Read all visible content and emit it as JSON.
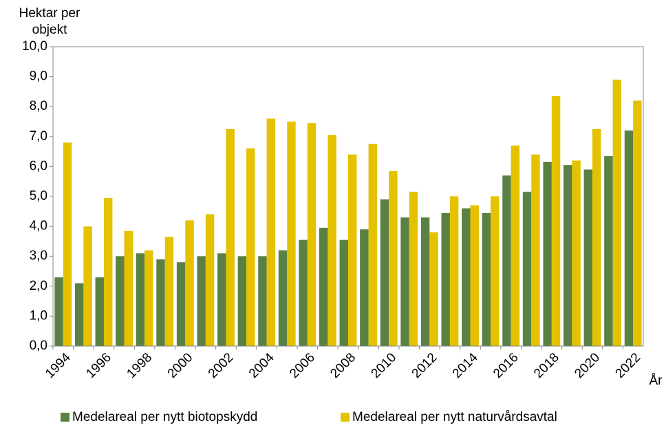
{
  "chart_data": {
    "type": "bar",
    "ylabel": "Hektar per objekt",
    "xlabel": "År",
    "categories": [
      "1994",
      null,
      "1996",
      null,
      "1998",
      null,
      "2000",
      null,
      "2002",
      null,
      "2004",
      null,
      "2006",
      null,
      "2008",
      null,
      "2010",
      null,
      "2012",
      null,
      "2014",
      null,
      "2016",
      null,
      "2018",
      null,
      "2020",
      null,
      "2022"
    ],
    "series": [
      {
        "name": "Medelareal per nytt biotopskydd",
        "color": "#5b8043",
        "values": [
          2.3,
          2.1,
          2.3,
          3.0,
          3.1,
          2.9,
          2.8,
          3.0,
          3.1,
          3.0,
          3.0,
          3.2,
          3.55,
          3.95,
          3.55,
          3.9,
          4.9,
          4.3,
          4.3,
          4.45,
          4.6,
          4.45,
          5.7,
          5.15,
          6.15,
          6.05,
          5.9,
          6.35,
          7.2
        ]
      },
      {
        "name": "Medelareal per nytt naturvårdsavtal",
        "color": "#e4c200",
        "values": [
          6.8,
          4.0,
          4.95,
          3.85,
          3.2,
          3.65,
          4.2,
          4.4,
          7.25,
          6.6,
          7.6,
          7.5,
          7.45,
          7.05,
          6.4,
          6.75,
          5.85,
          5.15,
          3.8,
          5.0,
          4.7,
          5.0,
          6.7,
          6.4,
          8.35,
          6.2,
          7.25,
          8.9,
          8.2
        ]
      }
    ],
    "ylim": [
      0,
      10
    ],
    "yticks": [
      {
        "value": 0,
        "label": "0,0"
      },
      {
        "value": 1,
        "label": "1,0"
      },
      {
        "value": 2,
        "label": "2,0"
      },
      {
        "value": 3,
        "label": "3,0"
      },
      {
        "value": 4,
        "label": "4,0"
      },
      {
        "value": 5,
        "label": "5,0"
      },
      {
        "value": 6,
        "label": "6,0"
      },
      {
        "value": 7,
        "label": "7,0"
      },
      {
        "value": 8,
        "label": "8,0"
      },
      {
        "value": 9,
        "label": "9,0"
      },
      {
        "value": 10,
        "label": "10,0"
      }
    ],
    "grid": false,
    "legend": "bottom"
  }
}
